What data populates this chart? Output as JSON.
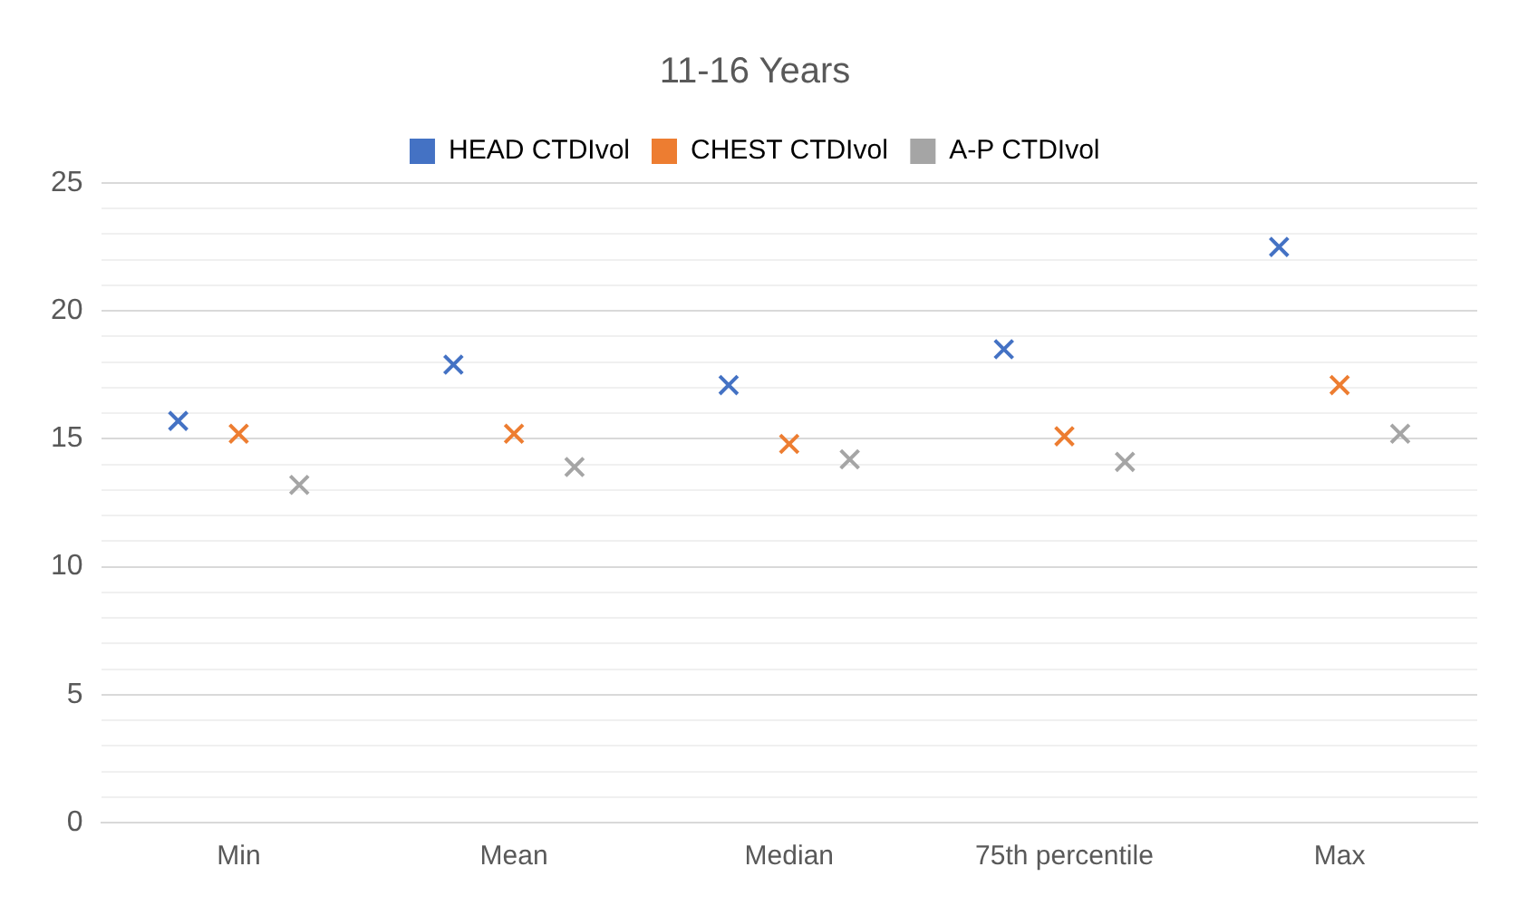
{
  "chart_data": {
    "type": "scatter",
    "title": "11-16 Years",
    "categories": [
      "Min",
      "Mean",
      "Median",
      "75th percentile",
      "Max"
    ],
    "series": [
      {
        "name": "HEAD CTDIvol",
        "color": "#4472c4",
        "values": [
          15.7,
          17.9,
          17.1,
          18.5,
          22.5
        ]
      },
      {
        "name": "CHEST CTDIvol",
        "color": "#ed7d31",
        "values": [
          15.2,
          15.2,
          14.8,
          15.1,
          17.1
        ]
      },
      {
        "name": "A-P CTDIvol",
        "color": "#a5a5a5",
        "values": [
          13.2,
          13.9,
          14.2,
          14.1,
          15.2
        ]
      }
    ],
    "ylim": [
      0,
      25
    ],
    "yticks": [
      0,
      {
        "value": 1,
        "label": null
      },
      {
        "value": 2,
        "label": null
      },
      {
        "value": 3,
        "label": null
      },
      {
        "value": 4,
        "label": null
      },
      5,
      {
        "value": 6,
        "label": null
      },
      {
        "value": 7,
        "label": null
      },
      {
        "value": 8,
        "label": null
      },
      {
        "value": 9,
        "label": null
      },
      10,
      {
        "value": 11,
        "label": null
      },
      {
        "value": 12,
        "label": null
      },
      {
        "value": 13,
        "label": null
      },
      {
        "value": 14,
        "label": null
      },
      15,
      {
        "value": 16,
        "label": null
      },
      {
        "value": 17,
        "label": null
      },
      {
        "value": 18,
        "label": null
      },
      {
        "value": 19,
        "label": null
      },
      20,
      {
        "value": 21,
        "label": null
      },
      {
        "value": 22,
        "label": null
      },
      {
        "value": 23,
        "label": null
      },
      {
        "value": 24,
        "label": null
      },
      25
    ],
    "grid": "y",
    "legend": "top",
    "marker": "cross"
  }
}
